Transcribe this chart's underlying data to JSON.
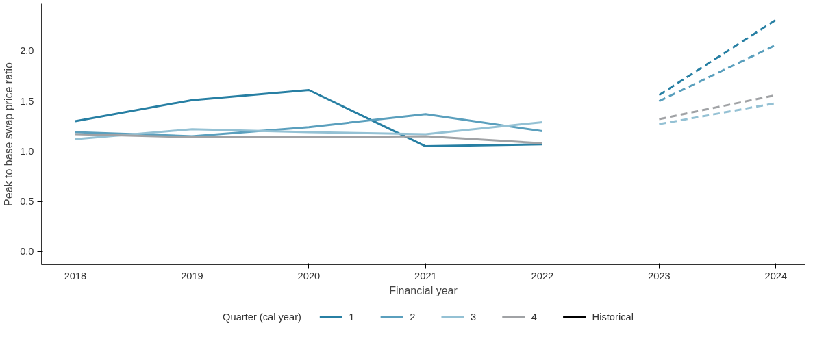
{
  "chart_data": {
    "type": "line",
    "xlabel": "Financial year",
    "ylabel": "Peak to base swap price ratio",
    "legend_title": "Quarter (cal year)",
    "legend": "bottom",
    "grid": false,
    "line_style": "solid",
    "xlim": [
      2017.71,
      2024.25
    ],
    "xticks": [
      2018,
      2019,
      2020,
      2021,
      2022,
      2023,
      2024
    ],
    "ylim": [
      -0.13,
      2.47
    ],
    "yticks": [
      {
        "value": 0,
        "label": "0.0"
      },
      0.5,
      {
        "value": 1,
        "label": "1.0"
      },
      1.5,
      {
        "value": 2,
        "label": "2.0"
      }
    ],
    "series": [
      {
        "name": "1",
        "color": "#277fa3",
        "x": [
          2018,
          2019,
          2020,
          2021,
          2022
        ],
        "values": [
          1.3,
          1.51,
          1.61,
          1.05,
          1.07
        ]
      },
      {
        "name": "2",
        "color": "#5a9fbd",
        "x": [
          2018,
          2019,
          2020,
          2021,
          2022
        ],
        "values": [
          1.19,
          1.15,
          1.24,
          1.37,
          1.2
        ]
      },
      {
        "name": "3",
        "color": "#94c1d4",
        "x": [
          2018,
          2019,
          2020,
          2021,
          2022
        ],
        "values": [
          1.12,
          1.22,
          1.19,
          1.17,
          1.29
        ]
      },
      {
        "name": "4",
        "color": "#a0a2a5",
        "x": [
          2018,
          2019,
          2020,
          2021,
          2022
        ],
        "values": [
          1.17,
          1.14,
          1.14,
          1.15,
          1.08
        ]
      },
      {
        "color": "#277fa3",
        "line_style": "dashed",
        "x": [
          2023,
          2024
        ],
        "values": [
          1.56,
          2.31
        ]
      },
      {
        "color": "#5a9fbd",
        "line_style": "dashed",
        "x": [
          2023,
          2024
        ],
        "values": [
          1.5,
          2.06
        ]
      },
      {
        "color": "#94c1d4",
        "line_style": "dashed",
        "x": [
          2023,
          2024
        ],
        "values": [
          1.27,
          1.48
        ]
      },
      {
        "color": "#a0a2a5",
        "line_style": "dashed",
        "x": [
          2023,
          2024
        ],
        "values": [
          1.32,
          1.56
        ]
      },
      {
        "name": "Historical",
        "color": "#000000"
      }
    ]
  }
}
